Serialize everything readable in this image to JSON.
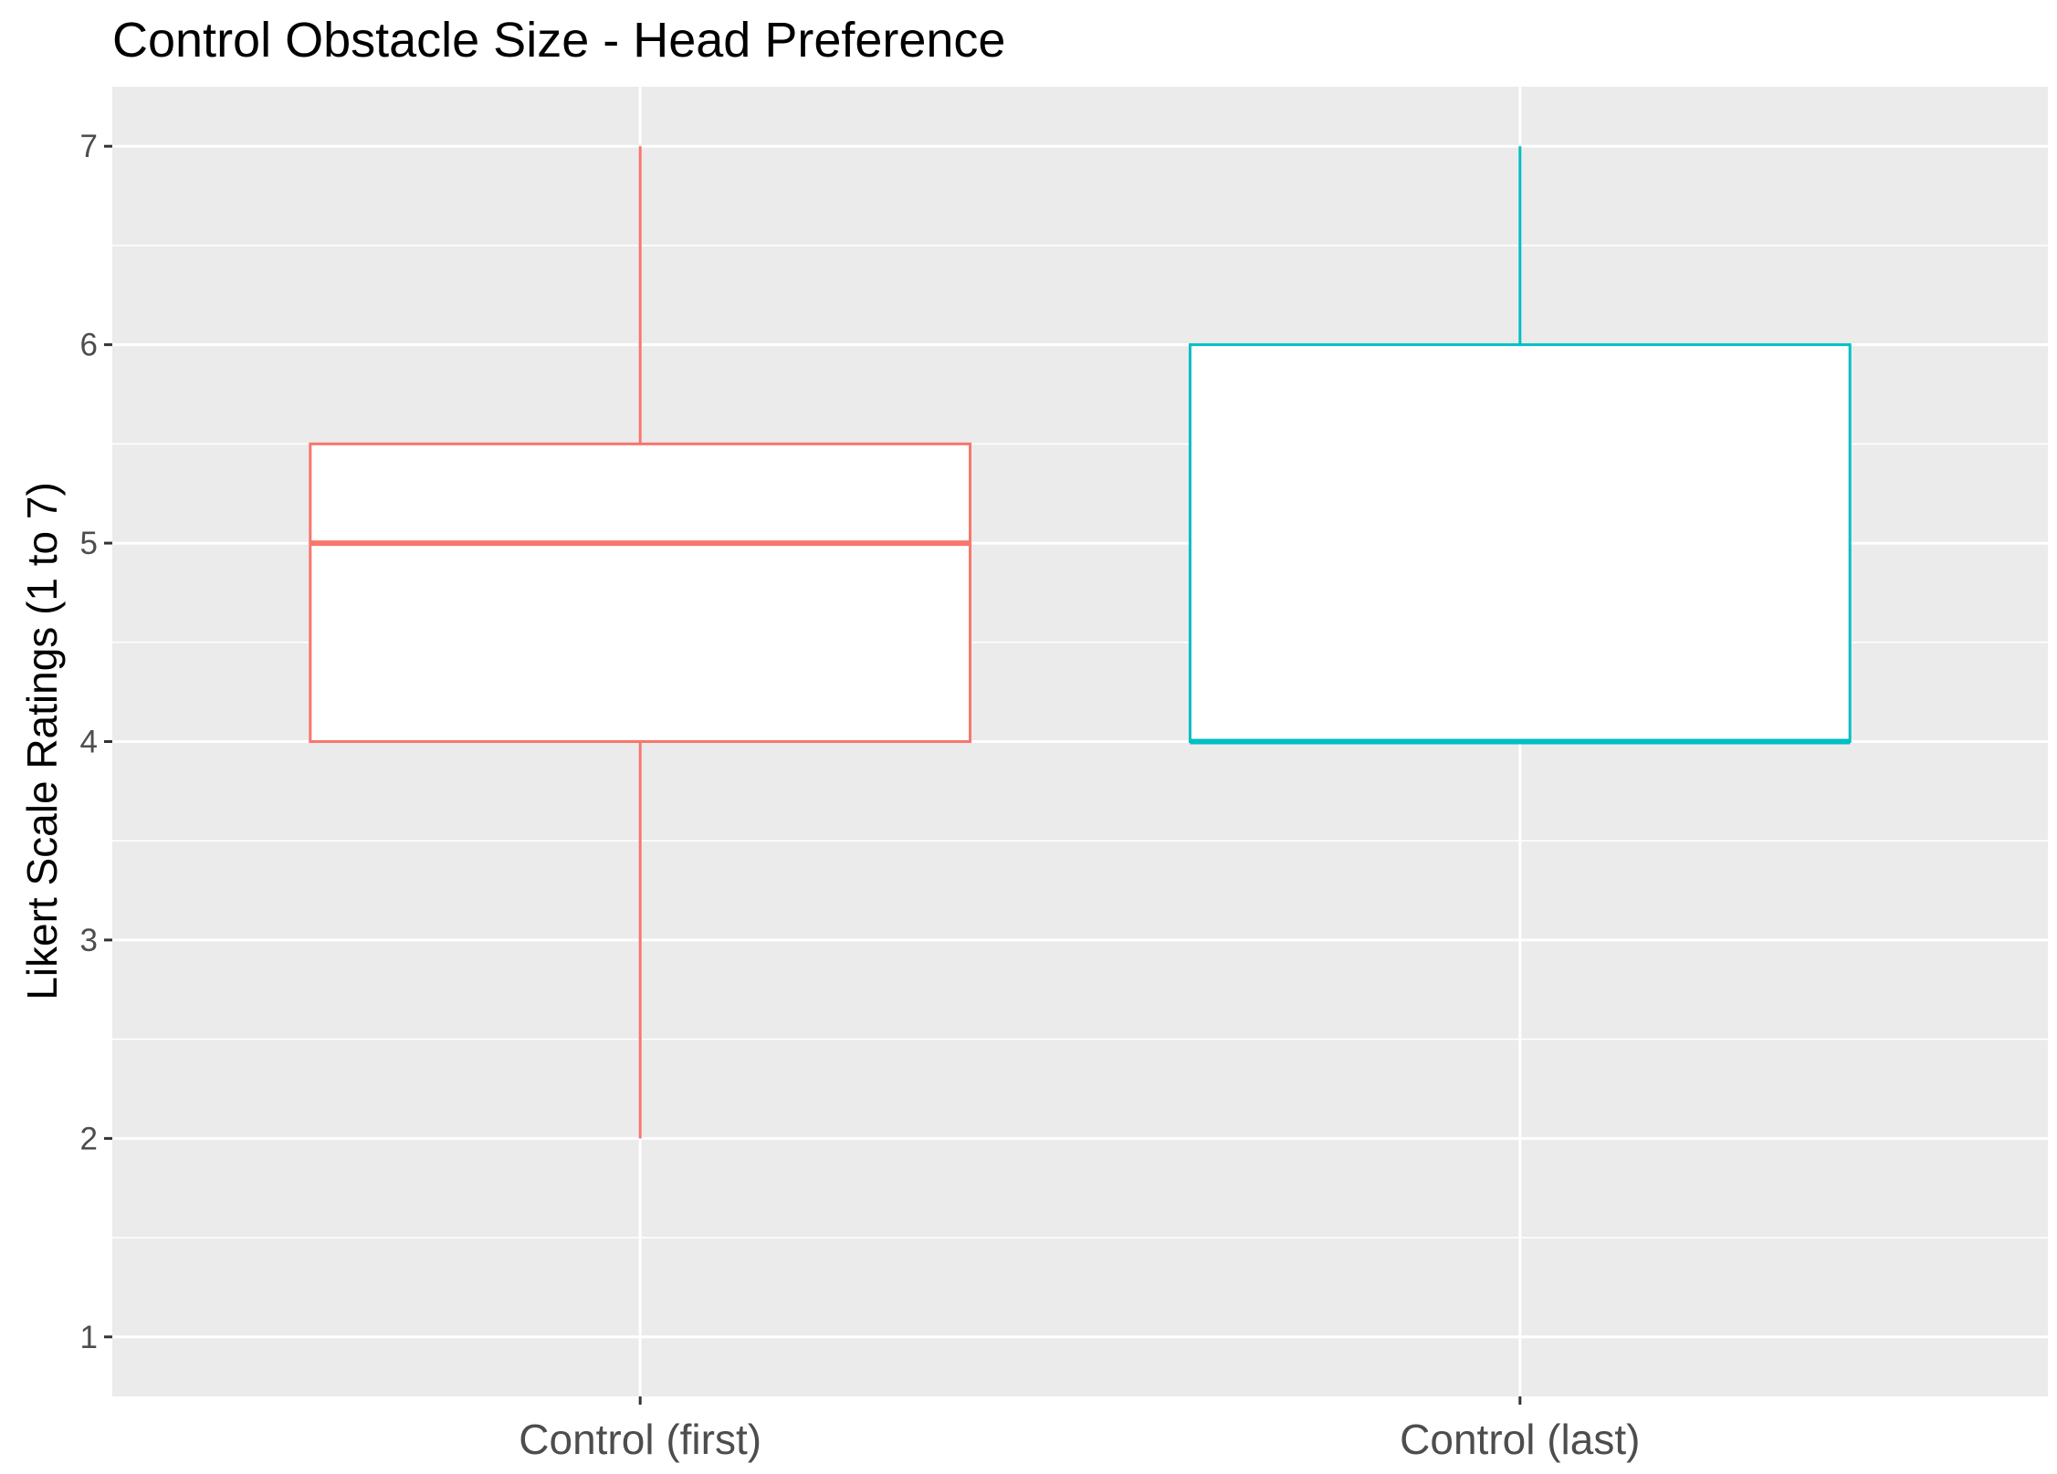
{
  "chart_data": {
    "type": "boxplot",
    "title": "Control Obstacle Size  - Head Preference",
    "xlabel": "",
    "ylabel": "Likert Scale Ratings (1 to 7)",
    "categories": [
      "Control (first)",
      "Control (last)"
    ],
    "boxes": [
      {
        "category": "Control (first)",
        "min": 2,
        "q1": 4,
        "median": 5,
        "q3": 5.5,
        "max": 7,
        "color": "#F8766D"
      },
      {
        "category": "Control (last)",
        "min": 4,
        "q1": 4,
        "median": 4,
        "q3": 6,
        "max": 7,
        "color": "#00BFC4"
      }
    ],
    "yticks": [
      1,
      2,
      3,
      4,
      5,
      6,
      7
    ],
    "ylim": [
      0.7,
      7.3
    ],
    "grid": true,
    "legend": "none",
    "panel_background": "#EBEBEB",
    "grid_color": "#FFFFFF"
  }
}
